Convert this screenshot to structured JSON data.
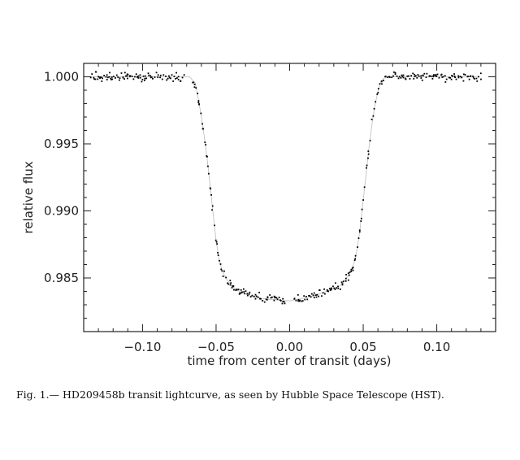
{
  "caption": "Fig. 1.— HD209458b transit lightcurve, as seen by Hubble Space Telescope (HST).",
  "chart_data": {
    "type": "scatter",
    "title": "",
    "xlabel": "time from center of transit (days)",
    "ylabel": "relative flux",
    "xlim": [
      -0.14,
      0.14
    ],
    "ylim": [
      0.981,
      1.001
    ],
    "xticks": [
      -0.1,
      -0.05,
      0.0,
      0.05,
      0.1
    ],
    "xtick_labels": [
      "−0.10",
      "−0.05",
      "0.00",
      "0.05",
      "0.10"
    ],
    "yticks": [
      0.985,
      0.99,
      0.995,
      1.0
    ],
    "ytick_labels": [
      "0.985",
      "0.990",
      "0.995",
      "1.000"
    ],
    "grid": false,
    "marker_color": "#000000",
    "model_color": "#bbbbbb",
    "transit_model": {
      "description_of_shape_points": "approximate model curve traced from the figure",
      "x": [
        -0.135,
        -0.068,
        -0.064,
        -0.062,
        -0.06,
        -0.058,
        -0.056,
        -0.054,
        -0.052,
        -0.05,
        -0.048,
        -0.046,
        -0.044,
        -0.042,
        -0.04,
        -0.038,
        -0.036,
        -0.034,
        -0.03,
        -0.025,
        -0.02,
        -0.015,
        -0.01,
        -0.005,
        0.0,
        0.005,
        0.01,
        0.015,
        0.02,
        0.025,
        0.03,
        0.034,
        0.036,
        0.038,
        0.04,
        0.042,
        0.044,
        0.046,
        0.048,
        0.05,
        0.052,
        0.054,
        0.056,
        0.058,
        0.06,
        0.062,
        0.064,
        0.068,
        0.13
      ],
      "y": [
        1.0,
        1.0,
        0.9995,
        0.9983,
        0.997,
        0.9955,
        0.9938,
        0.9918,
        0.9898,
        0.9878,
        0.9864,
        0.9856,
        0.9851,
        0.9848,
        0.9845,
        0.9843,
        0.9841,
        0.984,
        0.9838,
        0.9836,
        0.9835,
        0.9834,
        0.9834,
        0.9833,
        0.9833,
        0.9834,
        0.9835,
        0.9836,
        0.9838,
        0.984,
        0.9842,
        0.9844,
        0.9846,
        0.9849,
        0.9852,
        0.9856,
        0.9862,
        0.9872,
        0.9888,
        0.9908,
        0.9928,
        0.9948,
        0.9965,
        0.9979,
        0.9989,
        0.9996,
        0.9999,
        1.0,
        1.0
      ]
    },
    "gaps": [
      [
        -0.072,
        -0.066
      ],
      [
        -0.003,
        0.003
      ]
    ],
    "noise_sigma": 0.00016,
    "sampling_step": 0.0009
  }
}
